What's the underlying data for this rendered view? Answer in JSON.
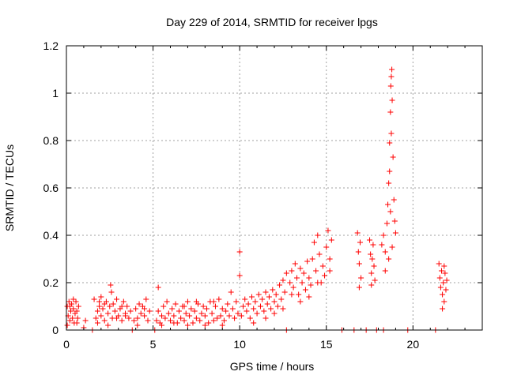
{
  "chart_data": {
    "type": "scatter",
    "title": "Day 229 of 2014, SRMTID for receiver lpgs",
    "xlabel": "GPS time / hours",
    "ylabel": "SRMTID / TECUs",
    "xlim": [
      0,
      24
    ],
    "ylim": [
      0,
      1.2
    ],
    "grid": true,
    "marker": "+",
    "x_ticks": [
      0,
      5,
      10,
      15,
      20
    ],
    "x_tick_labels": [
      "0",
      "5",
      "10",
      "15",
      "20"
    ],
    "y_ticks": [
      0,
      0.2,
      0.4,
      0.6,
      0.8,
      1,
      1.2
    ],
    "y_tick_labels": [
      "0",
      "0.2",
      "0.4",
      "0.6",
      "0.8",
      "1",
      "1.2"
    ],
    "series": [
      {
        "name": "lpgs",
        "color": "#ff0000",
        "points": [
          [
            0.05,
            0.1
          ],
          [
            0.1,
            0.06
          ],
          [
            0.15,
            0.12
          ],
          [
            0.2,
            0.04
          ],
          [
            0.25,
            0.08
          ],
          [
            0.3,
            0.11
          ],
          [
            0.35,
            0.05
          ],
          [
            0.4,
            0.09
          ],
          [
            0.45,
            0.03
          ],
          [
            0.5,
            0.07
          ],
          [
            0.55,
            0.12
          ],
          [
            0.6,
            0.08
          ],
          [
            0.65,
            0.05
          ],
          [
            0.7,
            0.1
          ],
          [
            0.05,
            0.02
          ],
          [
            0.2,
            0.1
          ],
          [
            0.4,
            0.13
          ],
          [
            0.6,
            0.03
          ],
          [
            1.0,
            0.01
          ],
          [
            1.1,
            0.04
          ],
          [
            1.5,
            0.0
          ],
          [
            1.6,
            0.13
          ],
          [
            1.7,
            0.05
          ],
          [
            1.8,
            0.08
          ],
          [
            1.9,
            0.1
          ],
          [
            2.0,
            0.06
          ],
          [
            2.1,
            0.09
          ],
          [
            2.2,
            0.04
          ],
          [
            2.3,
            0.12
          ],
          [
            2.4,
            0.07
          ],
          [
            2.5,
            0.1
          ],
          [
            2.55,
            0.19
          ],
          [
            2.6,
            0.16
          ],
          [
            2.65,
            0.05
          ],
          [
            2.7,
            0.11
          ],
          [
            2.8,
            0.08
          ],
          [
            2.9,
            0.13
          ],
          [
            3.0,
            0.06
          ],
          [
            3.1,
            0.09
          ],
          [
            3.2,
            0.04
          ],
          [
            3.3,
            0.12
          ],
          [
            3.4,
            0.07
          ],
          [
            3.5,
            0.1
          ],
          [
            3.6,
            0.05
          ],
          [
            3.7,
            0.08
          ],
          [
            1.8,
            0.03
          ],
          [
            2.2,
            0.11
          ],
          [
            2.9,
            0.05
          ],
          [
            3.2,
            0.1
          ],
          [
            3.4,
            0.06
          ],
          [
            2.0,
            0.14
          ],
          [
            1.9,
            0.12
          ],
          [
            2.4,
            0.02
          ],
          [
            3.8,
            0.0
          ],
          [
            3.9,
            0.04
          ],
          [
            4.0,
            0.09
          ],
          [
            4.1,
            0.05
          ],
          [
            4.2,
            0.11
          ],
          [
            4.3,
            0.07
          ],
          [
            4.4,
            0.1
          ],
          [
            4.5,
            0.06
          ],
          [
            4.6,
            0.13
          ],
          [
            4.7,
            0.04
          ],
          [
            4.8,
            0.08
          ],
          [
            4.1,
            0.02
          ],
          [
            4.5,
            0.09
          ],
          [
            5.1,
            0.0
          ],
          [
            5.3,
            0.18
          ],
          [
            5.2,
            0.04
          ],
          [
            5.3,
            0.08
          ],
          [
            5.4,
            0.03
          ],
          [
            5.5,
            0.06
          ],
          [
            5.6,
            0.1
          ],
          [
            5.7,
            0.05
          ],
          [
            5.8,
            0.12
          ],
          [
            5.9,
            0.07
          ],
          [
            6.0,
            0.04
          ],
          [
            6.1,
            0.09
          ],
          [
            6.2,
            0.06
          ],
          [
            6.3,
            0.11
          ],
          [
            6.4,
            0.03
          ],
          [
            6.5,
            0.08
          ],
          [
            6.6,
            0.05
          ],
          [
            6.7,
            0.1
          ],
          [
            6.8,
            0.04
          ],
          [
            6.9,
            0.07
          ],
          [
            7.0,
            0.12
          ],
          [
            7.1,
            0.06
          ],
          [
            7.2,
            0.09
          ],
          [
            7.3,
            0.03
          ],
          [
            7.4,
            0.08
          ],
          [
            7.5,
            0.05
          ],
          [
            7.6,
            0.11
          ],
          [
            7.7,
            0.04
          ],
          [
            7.8,
            0.07
          ],
          [
            7.9,
            0.1
          ],
          [
            8.0,
            0.06
          ],
          [
            8.1,
            0.09
          ],
          [
            8.2,
            0.03
          ],
          [
            8.3,
            0.12
          ],
          [
            8.4,
            0.07
          ],
          [
            8.5,
            0.04
          ],
          [
            8.6,
            0.1
          ],
          [
            8.7,
            0.05
          ],
          [
            8.8,
            0.13
          ],
          [
            8.9,
            0.06
          ],
          [
            9.0,
            0.09
          ],
          [
            9.1,
            0.04
          ],
          [
            9.2,
            0.08
          ],
          [
            9.3,
            0.11
          ],
          [
            9.4,
            0.06
          ],
          [
            9.5,
            0.16
          ],
          [
            9.6,
            0.09
          ],
          [
            9.7,
            0.05
          ],
          [
            9.8,
            0.12
          ],
          [
            9.9,
            0.07
          ],
          [
            10.0,
            0.23
          ],
          [
            10.0,
            0.33
          ],
          [
            5.5,
            0.02
          ],
          [
            6.2,
            0.03
          ],
          [
            7.0,
            0.02
          ],
          [
            8.0,
            0.02
          ],
          [
            9.0,
            0.02
          ],
          [
            6.8,
            0.1
          ],
          [
            7.5,
            0.12
          ],
          [
            8.5,
            0.12
          ],
          [
            10.1,
            0.06
          ],
          [
            10.2,
            0.1
          ],
          [
            10.3,
            0.13
          ],
          [
            10.4,
            0.08
          ],
          [
            10.5,
            0.11
          ],
          [
            10.6,
            0.05
          ],
          [
            10.7,
            0.14
          ],
          [
            10.8,
            0.09
          ],
          [
            10.9,
            0.12
          ],
          [
            11.0,
            0.07
          ],
          [
            11.1,
            0.15
          ],
          [
            11.2,
            0.1
          ],
          [
            11.3,
            0.13
          ],
          [
            11.4,
            0.08
          ],
          [
            11.5,
            0.16
          ],
          [
            11.6,
            0.11
          ],
          [
            11.7,
            0.14
          ],
          [
            11.8,
            0.09
          ],
          [
            11.9,
            0.17
          ],
          [
            12.0,
            0.12
          ],
          [
            12.1,
            0.15
          ],
          [
            12.2,
            0.1
          ],
          [
            12.3,
            0.19
          ],
          [
            12.4,
            0.13
          ],
          [
            12.5,
            0.21
          ],
          [
            12.6,
            0.16
          ],
          [
            12.7,
            0.24
          ],
          [
            10.8,
            0.03
          ],
          [
            11.5,
            0.05
          ],
          [
            12.0,
            0.07
          ],
          [
            12.5,
            0.09
          ],
          [
            12.9,
            0.2
          ],
          [
            13.0,
            0.25
          ],
          [
            13.1,
            0.18
          ],
          [
            13.2,
            0.28
          ],
          [
            13.3,
            0.22
          ],
          [
            13.4,
            0.15
          ],
          [
            13.5,
            0.26
          ],
          [
            13.6,
            0.2
          ],
          [
            13.7,
            0.24
          ],
          [
            13.8,
            0.17
          ],
          [
            13.9,
            0.29
          ],
          [
            14.0,
            0.22
          ],
          [
            14.1,
            0.19
          ],
          [
            14.2,
            0.3
          ],
          [
            14.3,
            0.37
          ],
          [
            14.4,
            0.25
          ],
          [
            14.5,
            0.4
          ],
          [
            14.6,
            0.32
          ],
          [
            14.7,
            0.2
          ],
          [
            14.8,
            0.27
          ],
          [
            14.9,
            0.23
          ],
          [
            15.0,
            0.35
          ],
          [
            15.1,
            0.42
          ],
          [
            15.2,
            0.3
          ],
          [
            15.3,
            0.38
          ],
          [
            15.2,
            0.25
          ],
          [
            13.0,
            0.15
          ],
          [
            13.5,
            0.12
          ],
          [
            14.0,
            0.14
          ],
          [
            14.5,
            0.2
          ],
          [
            12.7,
            0.0
          ],
          [
            15.9,
            0.0
          ],
          [
            16.6,
            0.0
          ],
          [
            17.3,
            0.0
          ],
          [
            17.9,
            0.0
          ],
          [
            18.3,
            0.0
          ],
          [
            19.7,
            0.0
          ],
          [
            21.3,
            0.0
          ],
          [
            16.8,
            0.41
          ],
          [
            16.85,
            0.33
          ],
          [
            16.9,
            0.28
          ],
          [
            16.95,
            0.37
          ],
          [
            17.0,
            0.22
          ],
          [
            16.9,
            0.18
          ],
          [
            17.5,
            0.38
          ],
          [
            17.55,
            0.32
          ],
          [
            17.6,
            0.24
          ],
          [
            17.65,
            0.3
          ],
          [
            17.7,
            0.36
          ],
          [
            17.75,
            0.27
          ],
          [
            17.8,
            0.21
          ],
          [
            17.6,
            0.19
          ],
          [
            18.2,
            0.36
          ],
          [
            18.3,
            0.4
          ],
          [
            18.4,
            0.33
          ],
          [
            18.5,
            0.45
          ],
          [
            18.55,
            0.53
          ],
          [
            18.6,
            0.62
          ],
          [
            18.65,
            0.79
          ],
          [
            18.7,
            0.92
          ],
          [
            18.72,
            1.03
          ],
          [
            18.75,
            1.07
          ],
          [
            18.78,
            1.1
          ],
          [
            18.8,
            0.97
          ],
          [
            18.85,
            0.73
          ],
          [
            18.9,
            0.55
          ],
          [
            18.95,
            0.46
          ],
          [
            19.0,
            0.41
          ],
          [
            18.6,
            0.3
          ],
          [
            18.4,
            0.25
          ],
          [
            18.7,
            0.5
          ],
          [
            18.8,
            0.35
          ],
          [
            18.65,
            0.67
          ],
          [
            18.75,
            0.83
          ],
          [
            21.5,
            0.28
          ],
          [
            21.55,
            0.22
          ],
          [
            21.6,
            0.18
          ],
          [
            21.65,
            0.25
          ],
          [
            21.7,
            0.15
          ],
          [
            21.75,
            0.2
          ],
          [
            21.8,
            0.12
          ],
          [
            21.85,
            0.24
          ],
          [
            21.9,
            0.17
          ],
          [
            21.95,
            0.21
          ],
          [
            21.7,
            0.09
          ],
          [
            21.8,
            0.27
          ]
        ]
      }
    ]
  }
}
